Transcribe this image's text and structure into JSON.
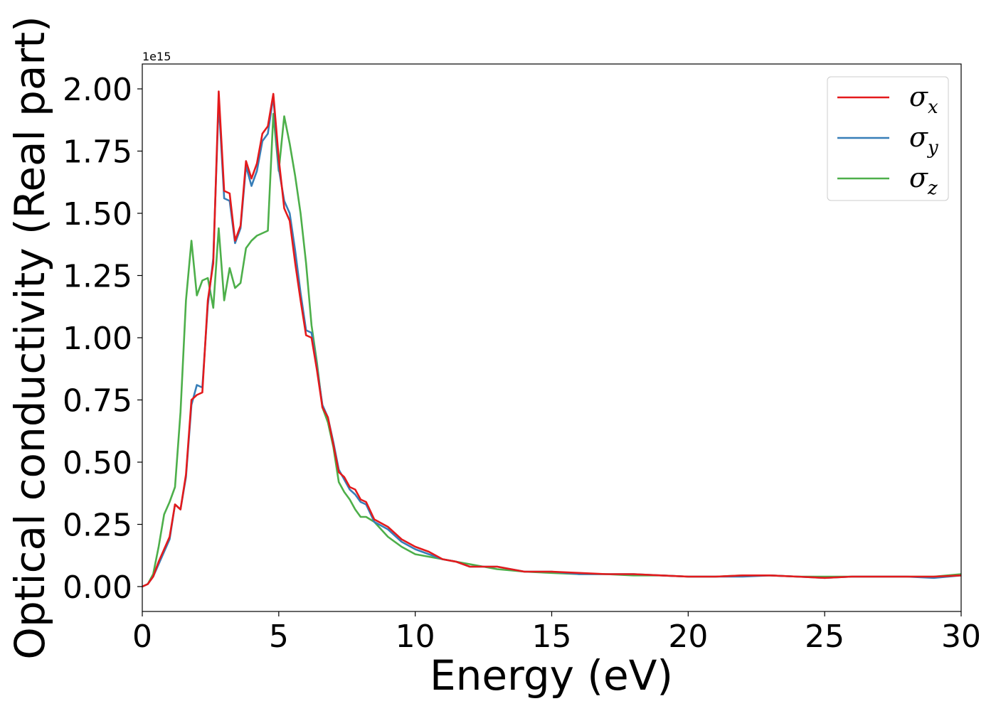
{
  "chart_data": {
    "type": "line",
    "title": "",
    "xlabel": "Energy (eV)",
    "ylabel": "Optical conductivity (Real part)",
    "y_offset_label": "1e15",
    "xlim": [
      0,
      30
    ],
    "ylim": [
      -0.1,
      2.1
    ],
    "xticks": [
      0,
      5,
      10,
      15,
      20,
      25,
      30
    ],
    "xtick_labels": [
      "0",
      "5",
      "10",
      "15",
      "20",
      "25",
      "30"
    ],
    "yticks": [
      0.0,
      0.25,
      0.5,
      0.75,
      1.0,
      1.25,
      1.5,
      1.75,
      2.0
    ],
    "ytick_labels": [
      "0.00",
      "0.25",
      "0.50",
      "0.75",
      "1.00",
      "1.25",
      "1.50",
      "1.75",
      "2.00"
    ],
    "grid": false,
    "legend_position": "top-right",
    "series": [
      {
        "name": "σx",
        "legend_base": "σ",
        "legend_sub": "x",
        "color": "#e41a1c",
        "x": [
          0,
          0.2,
          0.4,
          0.6,
          0.8,
          1.0,
          1.2,
          1.4,
          1.6,
          1.8,
          2.0,
          2.2,
          2.4,
          2.6,
          2.8,
          3.0,
          3.2,
          3.4,
          3.6,
          3.8,
          4.0,
          4.2,
          4.4,
          4.6,
          4.8,
          5.0,
          5.2,
          5.4,
          5.6,
          5.8,
          6.0,
          6.2,
          6.4,
          6.6,
          6.8,
          7.0,
          7.2,
          7.4,
          7.6,
          7.8,
          8.0,
          8.2,
          8.5,
          9.0,
          9.5,
          10.0,
          10.5,
          11.0,
          11.5,
          12.0,
          13.0,
          14.0,
          15.0,
          16.0,
          17.0,
          18.0,
          19.0,
          20.0,
          21.0,
          22.0,
          23.0,
          24.0,
          25.0,
          26.0,
          27.0,
          28.0,
          29.0,
          30.0
        ],
        "values": [
          0.0,
          0.01,
          0.04,
          0.1,
          0.15,
          0.2,
          0.33,
          0.31,
          0.45,
          0.75,
          0.77,
          0.78,
          1.15,
          1.3,
          1.99,
          1.59,
          1.58,
          1.39,
          1.45,
          1.71,
          1.64,
          1.7,
          1.82,
          1.85,
          1.98,
          1.72,
          1.52,
          1.47,
          1.3,
          1.15,
          1.01,
          1.0,
          0.87,
          0.72,
          0.68,
          0.57,
          0.46,
          0.44,
          0.4,
          0.39,
          0.35,
          0.34,
          0.27,
          0.24,
          0.19,
          0.16,
          0.14,
          0.11,
          0.1,
          0.08,
          0.08,
          0.06,
          0.06,
          0.055,
          0.05,
          0.05,
          0.045,
          0.04,
          0.04,
          0.045,
          0.045,
          0.04,
          0.035,
          0.04,
          0.04,
          0.04,
          0.04,
          0.045
        ]
      },
      {
        "name": "σy",
        "legend_base": "σ",
        "legend_sub": "y",
        "color": "#377eb8",
        "x": [
          0,
          0.2,
          0.4,
          0.6,
          0.8,
          1.0,
          1.2,
          1.4,
          1.6,
          1.8,
          2.0,
          2.2,
          2.4,
          2.6,
          2.8,
          3.0,
          3.2,
          3.4,
          3.6,
          3.8,
          4.0,
          4.2,
          4.4,
          4.6,
          4.8,
          5.0,
          5.2,
          5.4,
          5.6,
          5.8,
          6.0,
          6.2,
          6.4,
          6.6,
          6.8,
          7.0,
          7.2,
          7.4,
          7.6,
          7.8,
          8.0,
          8.2,
          8.5,
          9.0,
          9.5,
          10.0,
          10.5,
          11.0,
          11.5,
          12.0,
          13.0,
          14.0,
          15.0,
          16.0,
          17.0,
          18.0,
          19.0,
          20.0,
          21.0,
          22.0,
          23.0,
          24.0,
          25.0,
          26.0,
          27.0,
          28.0,
          29.0,
          30.0
        ],
        "values": [
          0.0,
          0.01,
          0.04,
          0.09,
          0.14,
          0.19,
          0.33,
          0.31,
          0.44,
          0.73,
          0.81,
          0.8,
          1.13,
          1.32,
          1.95,
          1.56,
          1.55,
          1.38,
          1.44,
          1.69,
          1.61,
          1.67,
          1.79,
          1.82,
          1.97,
          1.68,
          1.55,
          1.5,
          1.35,
          1.18,
          1.03,
          1.02,
          0.88,
          0.73,
          0.68,
          0.58,
          0.47,
          0.43,
          0.39,
          0.37,
          0.34,
          0.33,
          0.26,
          0.23,
          0.18,
          0.15,
          0.13,
          0.11,
          0.1,
          0.08,
          0.08,
          0.06,
          0.06,
          0.05,
          0.05,
          0.05,
          0.045,
          0.04,
          0.04,
          0.04,
          0.045,
          0.04,
          0.035,
          0.04,
          0.04,
          0.04,
          0.035,
          0.045
        ]
      },
      {
        "name": "σz",
        "legend_base": "σ",
        "legend_sub": "z",
        "color": "#4daf4a",
        "x": [
          0,
          0.2,
          0.4,
          0.6,
          0.8,
          1.0,
          1.2,
          1.4,
          1.6,
          1.8,
          2.0,
          2.2,
          2.4,
          2.6,
          2.8,
          3.0,
          3.2,
          3.4,
          3.6,
          3.8,
          4.0,
          4.2,
          4.4,
          4.6,
          4.8,
          5.0,
          5.2,
          5.4,
          5.6,
          5.8,
          6.0,
          6.2,
          6.4,
          6.6,
          6.8,
          7.0,
          7.2,
          7.4,
          7.6,
          7.8,
          8.0,
          8.2,
          8.5,
          9.0,
          9.5,
          10.0,
          10.5,
          11.0,
          11.5,
          12.0,
          13.0,
          14.0,
          15.0,
          16.0,
          17.0,
          18.0,
          19.0,
          20.0,
          21.0,
          22.0,
          23.0,
          24.0,
          25.0,
          26.0,
          27.0,
          28.0,
          29.0,
          30.0
        ],
        "values": [
          0.0,
          0.01,
          0.05,
          0.16,
          0.29,
          0.34,
          0.4,
          0.7,
          1.15,
          1.39,
          1.17,
          1.23,
          1.24,
          1.12,
          1.44,
          1.15,
          1.28,
          1.2,
          1.22,
          1.36,
          1.39,
          1.41,
          1.42,
          1.43,
          1.9,
          1.67,
          1.89,
          1.78,
          1.65,
          1.5,
          1.3,
          1.05,
          0.9,
          0.72,
          0.66,
          0.56,
          0.42,
          0.38,
          0.35,
          0.31,
          0.28,
          0.28,
          0.26,
          0.2,
          0.16,
          0.13,
          0.12,
          0.11,
          0.1,
          0.09,
          0.07,
          0.06,
          0.055,
          0.05,
          0.05,
          0.045,
          0.045,
          0.04,
          0.04,
          0.045,
          0.045,
          0.04,
          0.04,
          0.04,
          0.04,
          0.04,
          0.04,
          0.05
        ]
      }
    ]
  }
}
